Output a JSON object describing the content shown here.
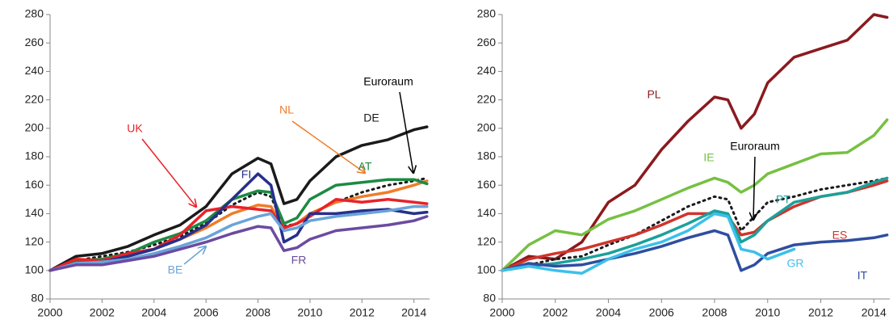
{
  "chart_data": [
    {
      "type": "line",
      "xlim": [
        2000,
        2014.6
      ],
      "ylim": [
        80,
        280
      ],
      "xticks": [
        2000,
        2002,
        2004,
        2006,
        2008,
        2010,
        2012,
        2014
      ],
      "yticks": [
        80,
        100,
        120,
        140,
        160,
        180,
        200,
        220,
        240,
        260,
        280
      ],
      "x": [
        2000,
        2001,
        2002,
        2003,
        2004,
        2005,
        2006,
        2007,
        2008,
        2008.5,
        2009,
        2009.5,
        2010,
        2011,
        2012,
        2013,
        2014,
        2014.5
      ],
      "series": [
        {
          "name": "DE",
          "color": "#1a1a1a",
          "style": "solid",
          "values": [
            100,
            110,
            112,
            117,
            125,
            132,
            145,
            168,
            179,
            175,
            147,
            150,
            163,
            180,
            188,
            192,
            199,
            201
          ]
        },
        {
          "name": "Euroraum",
          "color": "#1a1a1a",
          "style": "dotted",
          "values": [
            100,
            107,
            110,
            113,
            118,
            124,
            133,
            146,
            155,
            152,
            131,
            133,
            140,
            148,
            155,
            160,
            163,
            165
          ]
        },
        {
          "name": "NL",
          "color": "#f07c2a",
          "style": "solid",
          "values": [
            100,
            106,
            108,
            110,
            115,
            122,
            130,
            140,
            146,
            145,
            130,
            133,
            140,
            148,
            152,
            155,
            160,
            163
          ]
        },
        {
          "name": "AT",
          "color": "#1e8a43",
          "style": "solid",
          "values": [
            100,
            107,
            108,
            112,
            120,
            126,
            135,
            150,
            156,
            155,
            133,
            137,
            150,
            160,
            162,
            164,
            164,
            161
          ]
        },
        {
          "name": "UK",
          "color": "#e8222a",
          "style": "solid",
          "values": [
            100,
            108,
            107,
            112,
            115,
            125,
            142,
            145,
            143,
            142,
            130,
            133,
            138,
            150,
            148,
            150,
            148,
            147
          ]
        },
        {
          "name": "FI",
          "color": "#262f8c",
          "style": "solid",
          "values": [
            100,
            105,
            106,
            110,
            115,
            122,
            132,
            150,
            168,
            160,
            120,
            125,
            140,
            140,
            142,
            143,
            140,
            141
          ]
        },
        {
          "name": "BE",
          "color": "#6aa3d8",
          "style": "solid",
          "values": [
            100,
            105,
            106,
            108,
            112,
            117,
            123,
            132,
            138,
            140,
            128,
            130,
            135,
            138,
            140,
            142,
            145,
            145
          ]
        },
        {
          "name": "FR",
          "color": "#6b4ba0",
          "style": "solid",
          "values": [
            100,
            104,
            104,
            107,
            110,
            115,
            120,
            126,
            131,
            130,
            114,
            116,
            122,
            128,
            130,
            132,
            135,
            138
          ]
        }
      ]
    },
    {
      "type": "line",
      "xlim": [
        2000,
        2014.6
      ],
      "ylim": [
        80,
        280
      ],
      "xticks": [
        2000,
        2002,
        2004,
        2006,
        2008,
        2010,
        2012,
        2014
      ],
      "yticks": [
        80,
        100,
        120,
        140,
        160,
        180,
        200,
        220,
        240,
        260,
        280
      ],
      "x": [
        2000,
        2001,
        2002,
        2003,
        2004,
        2005,
        2006,
        2007,
        2008,
        2008.5,
        2009,
        2009.5,
        2010,
        2011,
        2012,
        2013,
        2014,
        2014.5
      ],
      "series": [
        {
          "name": "PL",
          "color": "#8b1a1e",
          "style": "solid",
          "values": [
            100,
            110,
            108,
            120,
            148,
            160,
            185,
            205,
            222,
            220,
            200,
            210,
            232,
            250,
            256,
            262,
            280,
            278
          ]
        },
        {
          "name": "IE",
          "color": "#76c043",
          "style": "solid",
          "values": [
            100,
            118,
            128,
            125,
            136,
            142,
            150,
            158,
            165,
            162,
            155,
            160,
            168,
            175,
            182,
            183,
            195,
            206
          ]
        },
        {
          "name": "Euroraum",
          "color": "#1a1a1a",
          "style": "dotted",
          "values": [
            100,
            104,
            108,
            110,
            118,
            125,
            135,
            145,
            152,
            150,
            128,
            138,
            148,
            152,
            157,
            160,
            163,
            165
          ]
        },
        {
          "name": "ES",
          "color": "#d0342c",
          "style": "solid",
          "values": [
            100,
            108,
            112,
            115,
            120,
            125,
            132,
            140,
            140,
            138,
            125,
            127,
            135,
            145,
            152,
            155,
            160,
            163
          ]
        },
        {
          "name": "PT",
          "color": "#1aa19a",
          "style": "solid",
          "values": [
            100,
            103,
            105,
            108,
            112,
            118,
            125,
            133,
            142,
            140,
            120,
            125,
            135,
            148,
            152,
            155,
            162,
            165
          ]
        },
        {
          "name": "IT",
          "color": "#2f4ea0",
          "style": "solid",
          "values": [
            100,
            105,
            103,
            104,
            108,
            112,
            117,
            123,
            128,
            125,
            100,
            104,
            112,
            118,
            120,
            121,
            123,
            125
          ]
        },
        {
          "name": "GR",
          "color": "#3cc0ea",
          "style": "solid",
          "values": [
            100,
            103,
            100,
            98,
            108,
            115,
            120,
            128,
            140,
            138,
            115,
            113,
            108,
            115,
            null,
            null,
            null,
            null
          ]
        }
      ]
    }
  ]
}
